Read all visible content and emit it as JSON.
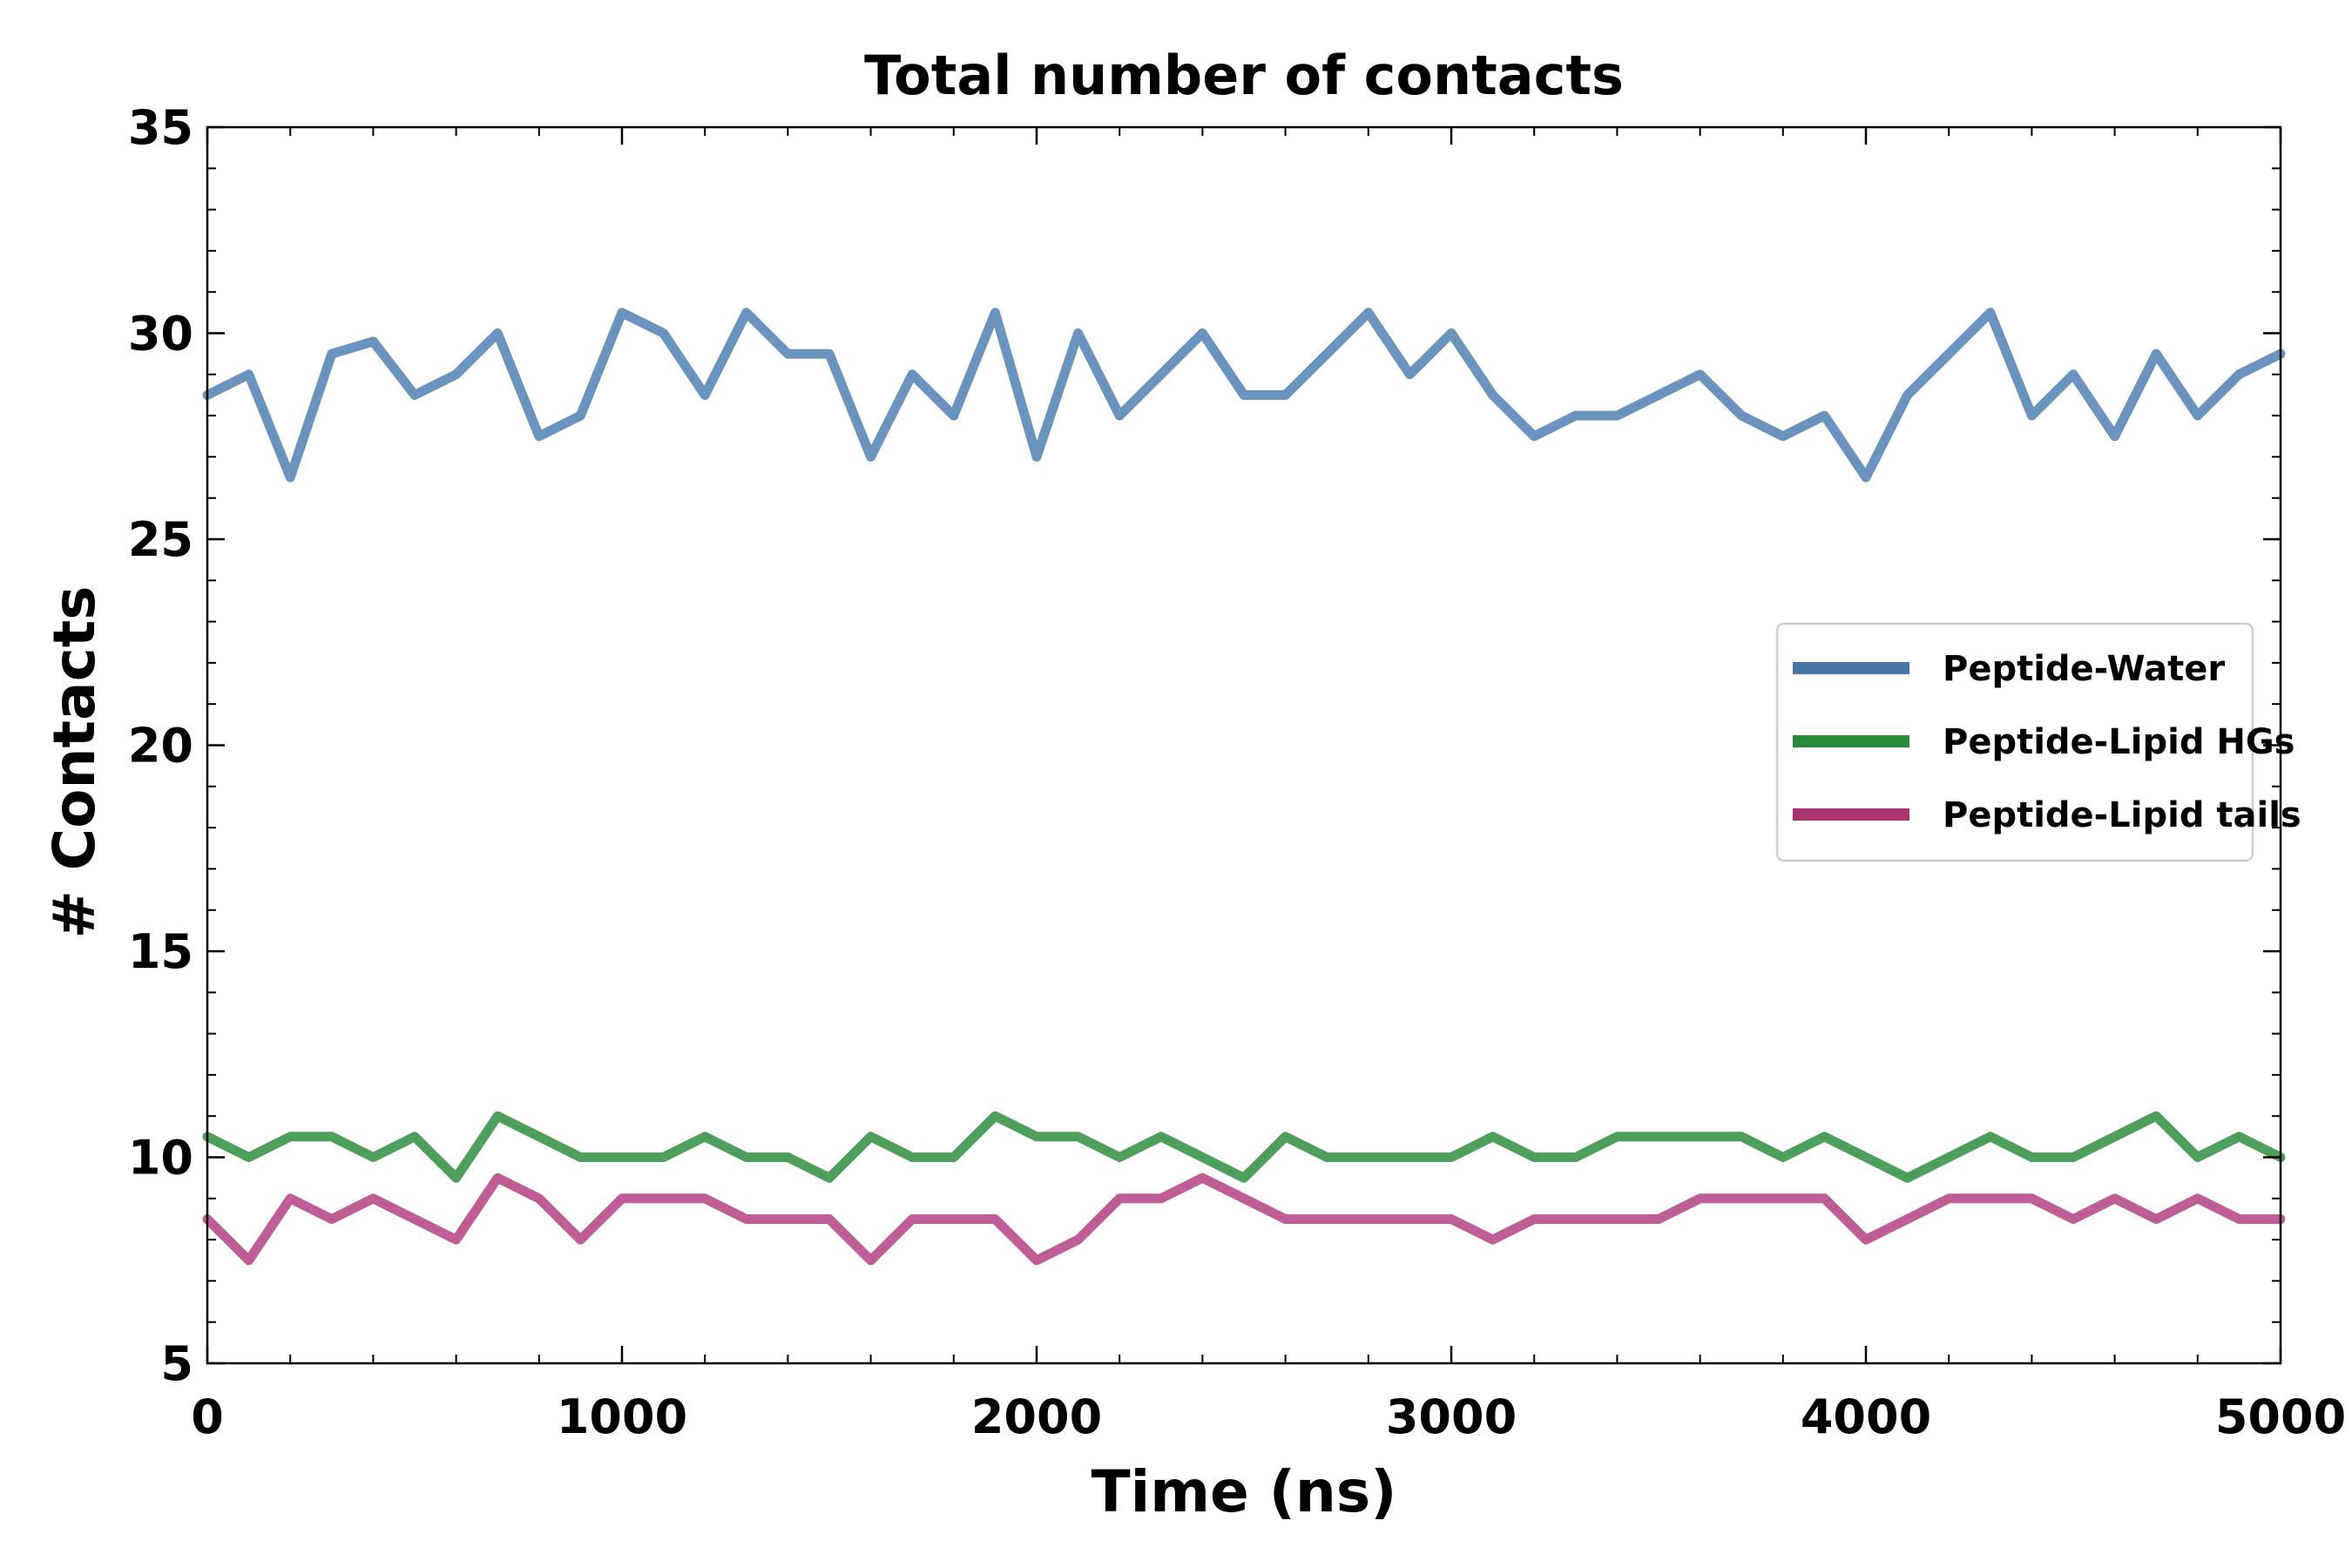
{
  "chart_data": {
    "type": "line",
    "title": "Total number of contacts",
    "xlabel": "Time (ns)",
    "ylabel": "# Contacts",
    "xlim": [
      0,
      5000
    ],
    "ylim": [
      5,
      35
    ],
    "x_ticks": [
      "0",
      "1000",
      "2000",
      "3000",
      "4000",
      "5000"
    ],
    "y_ticks": [
      "5",
      "10",
      "15",
      "20",
      "25",
      "30",
      "35"
    ],
    "x_tick_values": [
      0,
      1000,
      2000,
      3000,
      4000,
      5000
    ],
    "y_tick_values": [
      5,
      10,
      15,
      20,
      25,
      30,
      35
    ],
    "grid": false,
    "legend_position": "center-right",
    "x": [
      0,
      100,
      200,
      300,
      400,
      500,
      600,
      700,
      800,
      900,
      1000,
      1100,
      1200,
      1300,
      1400,
      1500,
      1600,
      1700,
      1800,
      1900,
      2000,
      2100,
      2200,
      2300,
      2400,
      2500,
      2600,
      2700,
      2800,
      2900,
      3000,
      3100,
      3200,
      3300,
      3400,
      3500,
      3600,
      3700,
      3800,
      3900,
      4000,
      4100,
      4200,
      4300,
      4400,
      4500,
      4600,
      4700,
      4800,
      4900,
      5000
    ],
    "series": [
      {
        "name": "Peptide-Water",
        "color": "#6a93bd",
        "legend_color": "#4677a6",
        "values": [
          28.5,
          29.0,
          26.5,
          29.5,
          29.8,
          28.5,
          29.0,
          30.0,
          27.5,
          28.0,
          30.5,
          30.0,
          28.5,
          30.5,
          29.5,
          29.5,
          27.0,
          29.0,
          28.0,
          30.5,
          27.0,
          30.0,
          28.0,
          29.0,
          30.0,
          28.5,
          28.5,
          29.5,
          30.5,
          29.0,
          30.0,
          28.5,
          27.5,
          28.0,
          28.0,
          28.5,
          29.0,
          28.0,
          27.5,
          28.0,
          26.5,
          28.5,
          29.5,
          30.5,
          28.0,
          29.0,
          27.5,
          29.5,
          28.0,
          29.0,
          29.5
        ]
      },
      {
        "name": "Peptide-Lipid HGs",
        "color": "#4e9f5b",
        "legend_color": "#2a8a3a",
        "values": [
          10.5,
          10.0,
          10.5,
          10.5,
          10.0,
          10.5,
          9.5,
          11.0,
          10.5,
          10.0,
          10.0,
          10.0,
          10.5,
          10.0,
          10.0,
          9.5,
          10.5,
          10.0,
          10.0,
          11.0,
          10.5,
          10.5,
          10.0,
          10.5,
          10.0,
          9.5,
          10.5,
          10.0,
          10.0,
          10.0,
          10.0,
          10.5,
          10.0,
          10.0,
          10.5,
          10.5,
          10.5,
          10.5,
          10.0,
          10.5,
          10.0,
          9.5,
          10.0,
          10.5,
          10.0,
          10.0,
          10.5,
          11.0,
          10.0,
          10.5,
          10.0
        ]
      },
      {
        "name": "Peptide-Lipid tails",
        "color": "#bf5d96",
        "legend_color": "#a8346f",
        "values": [
          8.5,
          7.5,
          9.0,
          8.5,
          9.0,
          8.5,
          8.0,
          9.5,
          9.0,
          8.0,
          9.0,
          9.0,
          9.0,
          8.5,
          8.5,
          8.5,
          7.5,
          8.5,
          8.5,
          8.5,
          7.5,
          8.0,
          9.0,
          9.0,
          9.5,
          9.0,
          8.5,
          8.5,
          8.5,
          8.5,
          8.5,
          8.0,
          8.5,
          8.5,
          8.5,
          8.5,
          9.0,
          9.0,
          9.0,
          9.0,
          8.0,
          8.5,
          9.0,
          9.0,
          9.0,
          8.5,
          9.0,
          8.5,
          9.0,
          8.5,
          8.5
        ]
      }
    ]
  }
}
